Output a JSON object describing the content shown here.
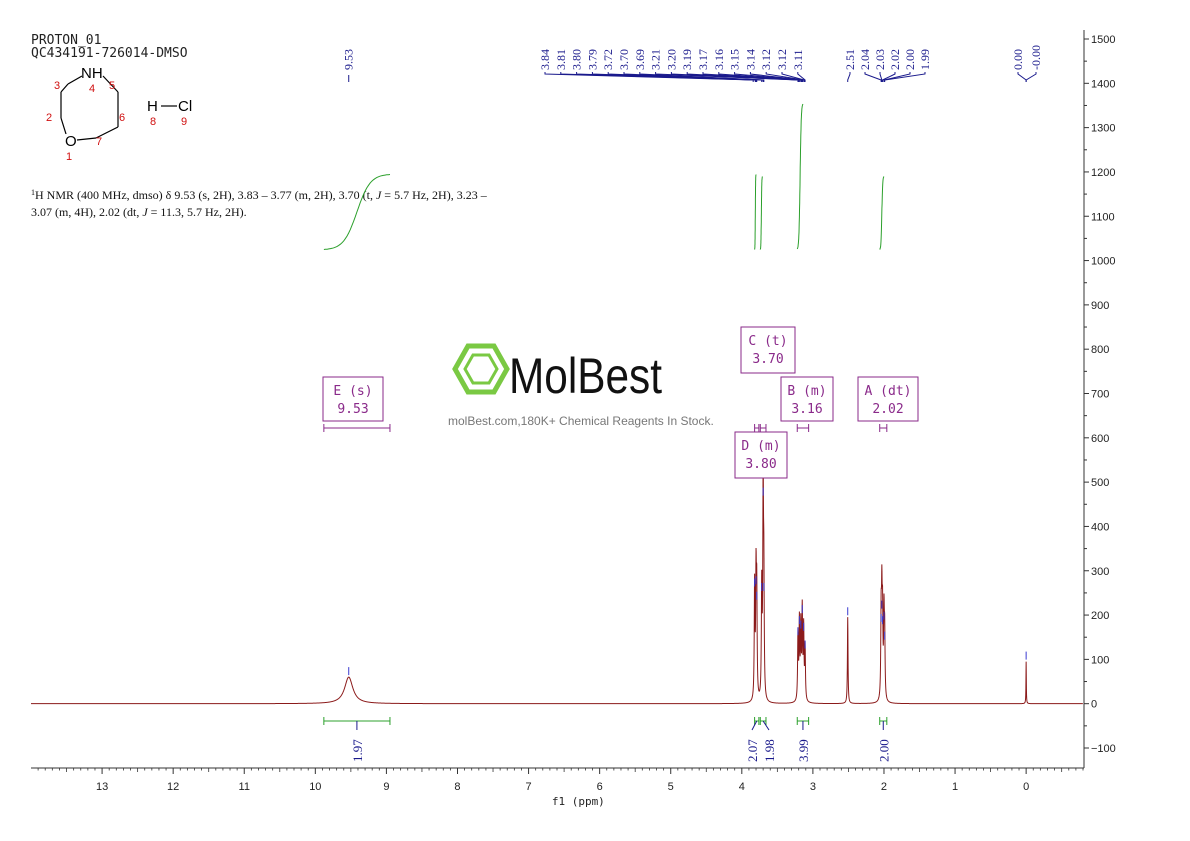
{
  "header": {
    "line1": "PROTON_01",
    "line2": "QC434191-726014-DMSO"
  },
  "molecule": {
    "atoms": [
      {
        "symbol": "NH",
        "num": "4"
      },
      {
        "symbol": "",
        "num": "3"
      },
      {
        "symbol": "",
        "num": "5"
      },
      {
        "symbol": "",
        "num": "2"
      },
      {
        "symbol": "",
        "num": "6"
      },
      {
        "symbol": "O",
        "num": "1"
      },
      {
        "symbol": "",
        "num": "7"
      }
    ],
    "salt": {
      "h": "H",
      "cl": "Cl",
      "h_num": "8",
      "cl_num": "9"
    }
  },
  "description": {
    "sup": "1",
    "line1_pre": "H NMR (400 MHz, dmso) δ 9.53 (s, 2H), 3.83 – 3.77 (m, 2H), 3.70 (t, ",
    "j": "J",
    "line1_post": " = 5.7 Hz, 2H), 3.23 –",
    "line2_pre": "3.07 (m, 4H), 2.02 (dt, ",
    "line2_post": " = 11.3, 5.7 Hz, 2H)."
  },
  "watermark": {
    "brand": "MolBest",
    "tagline": "molBest.com,180K+ Chemical Reagents In Stock."
  },
  "colors": {
    "spectrum": "#8b1a1a",
    "peak_labels": "#1a1a8c",
    "integral": "#2ca02c",
    "multiplet_box": "#8a2a8a",
    "logo": "#7ac943"
  },
  "chart_data": {
    "type": "line",
    "xlabel": "f1 (ppm)",
    "xlim": [
      14.0,
      -0.8
    ],
    "ylim": [
      -150,
      1520
    ],
    "x_ticks": [
      13,
      12,
      11,
      10,
      9,
      8,
      7,
      6,
      5,
      4,
      3,
      2,
      1,
      0
    ],
    "y_ticks": [
      1500,
      1400,
      1300,
      1200,
      1100,
      1000,
      900,
      800,
      700,
      600,
      500,
      400,
      300,
      200,
      100,
      0,
      -100
    ],
    "peaks": [
      {
        "ppm": 9.53,
        "height": 60,
        "width": 0.07
      },
      {
        "ppm": 3.82,
        "height": 260,
        "width": 0.006
      },
      {
        "ppm": 3.8,
        "height": 265,
        "width": 0.006
      },
      {
        "ppm": 3.79,
        "height": 230,
        "width": 0.006
      },
      {
        "ppm": 3.72,
        "height": 250,
        "width": 0.006
      },
      {
        "ppm": 3.7,
        "height": 465,
        "width": 0.006
      },
      {
        "ppm": 3.69,
        "height": 250,
        "width": 0.006
      },
      {
        "ppm": 3.21,
        "height": 150,
        "width": 0.006
      },
      {
        "ppm": 3.19,
        "height": 175,
        "width": 0.006
      },
      {
        "ppm": 3.17,
        "height": 165,
        "width": 0.006
      },
      {
        "ppm": 3.15,
        "height": 200,
        "width": 0.006
      },
      {
        "ppm": 3.13,
        "height": 160,
        "width": 0.006
      },
      {
        "ppm": 3.11,
        "height": 120,
        "width": 0.006
      },
      {
        "ppm": 2.51,
        "height": 195,
        "width": 0.005
      },
      {
        "ppm": 2.04,
        "height": 180,
        "width": 0.006
      },
      {
        "ppm": 2.03,
        "height": 210,
        "width": 0.006
      },
      {
        "ppm": 2.02,
        "height": 175,
        "width": 0.006
      },
      {
        "ppm": 2.0,
        "height": 185,
        "width": 0.006
      },
      {
        "ppm": 1.99,
        "height": 140,
        "width": 0.006
      },
      {
        "ppm": 0.0,
        "height": 95,
        "width": 0.003
      }
    ],
    "peak_labels": {
      "single": [
        "9.53"
      ],
      "group1": [
        "3.84",
        "3.81",
        "3.80",
        "3.79",
        "3.72",
        "3.70",
        "3.69",
        "3.21",
        "3.20",
        "3.19",
        "3.17",
        "3.16",
        "3.15",
        "3.14",
        "3.12",
        "3.12",
        "3.11"
      ],
      "group2": [
        "2.51",
        "2.04",
        "2.03",
        "2.02",
        "2.00",
        "1.99"
      ],
      "group3": [
        "0.00",
        "-0.00"
      ]
    },
    "integrals": [
      {
        "from": 9.88,
        "to": 8.95,
        "value": "1.97"
      },
      {
        "from": 3.82,
        "to": 3.76,
        "value": "2.07"
      },
      {
        "from": 3.74,
        "to": 3.66,
        "value": "1.98"
      },
      {
        "from": 3.22,
        "to": 3.06,
        "value": "3.99"
      },
      {
        "from": 2.06,
        "to": 1.96,
        "value": "2.00"
      }
    ],
    "multiplets": [
      {
        "label": "E (s)",
        "shift": "9.53",
        "from": 9.88,
        "to": 8.95
      },
      {
        "label": "C (t)",
        "shift": "3.70",
        "from": 3.74,
        "to": 3.66
      },
      {
        "label": "B (m)",
        "shift": "3.16",
        "from": 3.22,
        "to": 3.06
      },
      {
        "label": "A (dt)",
        "shift": "2.02",
        "from": 2.06,
        "to": 1.96
      },
      {
        "label": "D (m)",
        "shift": "3.80",
        "from": 3.82,
        "to": 3.76
      }
    ]
  }
}
